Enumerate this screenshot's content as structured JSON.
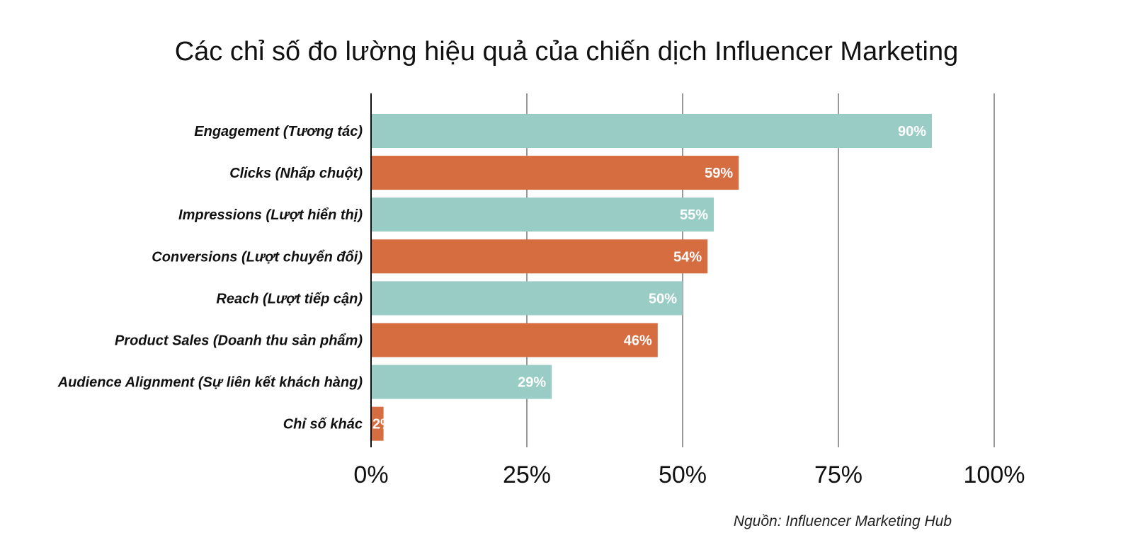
{
  "chart_data": {
    "type": "bar",
    "orientation": "horizontal",
    "title": "Các chỉ số đo lường hiệu quả của chiến dịch Influencer Marketing",
    "categories": [
      "Engagement (Tương tác)",
      "Clicks (Nhấp chuột)",
      "Impressions (Lượt hiển thị)",
      "Conversions (Lượt chuyển đổi)",
      "Reach (Lượt tiếp cận)",
      "Product Sales (Doanh thu sản phẩm)",
      "Audience Alignment (Sự liên kết khách hàng)",
      "Chỉ số khác"
    ],
    "values": [
      90,
      59,
      55,
      54,
      50,
      46,
      29,
      2
    ],
    "data_labels": [
      "90%",
      "59%",
      "55%",
      "54%",
      "50%",
      "46%",
      "29%",
      "2%"
    ],
    "xlim": [
      0,
      100
    ],
    "x_ticks": [
      0,
      25,
      50,
      75,
      100
    ],
    "x_tick_labels": [
      "0%",
      "25%",
      "50%",
      "75%",
      "100%"
    ],
    "xlabel": "",
    "ylabel": "",
    "grid": "vertical",
    "legend": "none",
    "colors": [
      "#98CCC5",
      "#D66D41"
    ],
    "source": "Nguồn: Influencer Marketing Hub"
  }
}
